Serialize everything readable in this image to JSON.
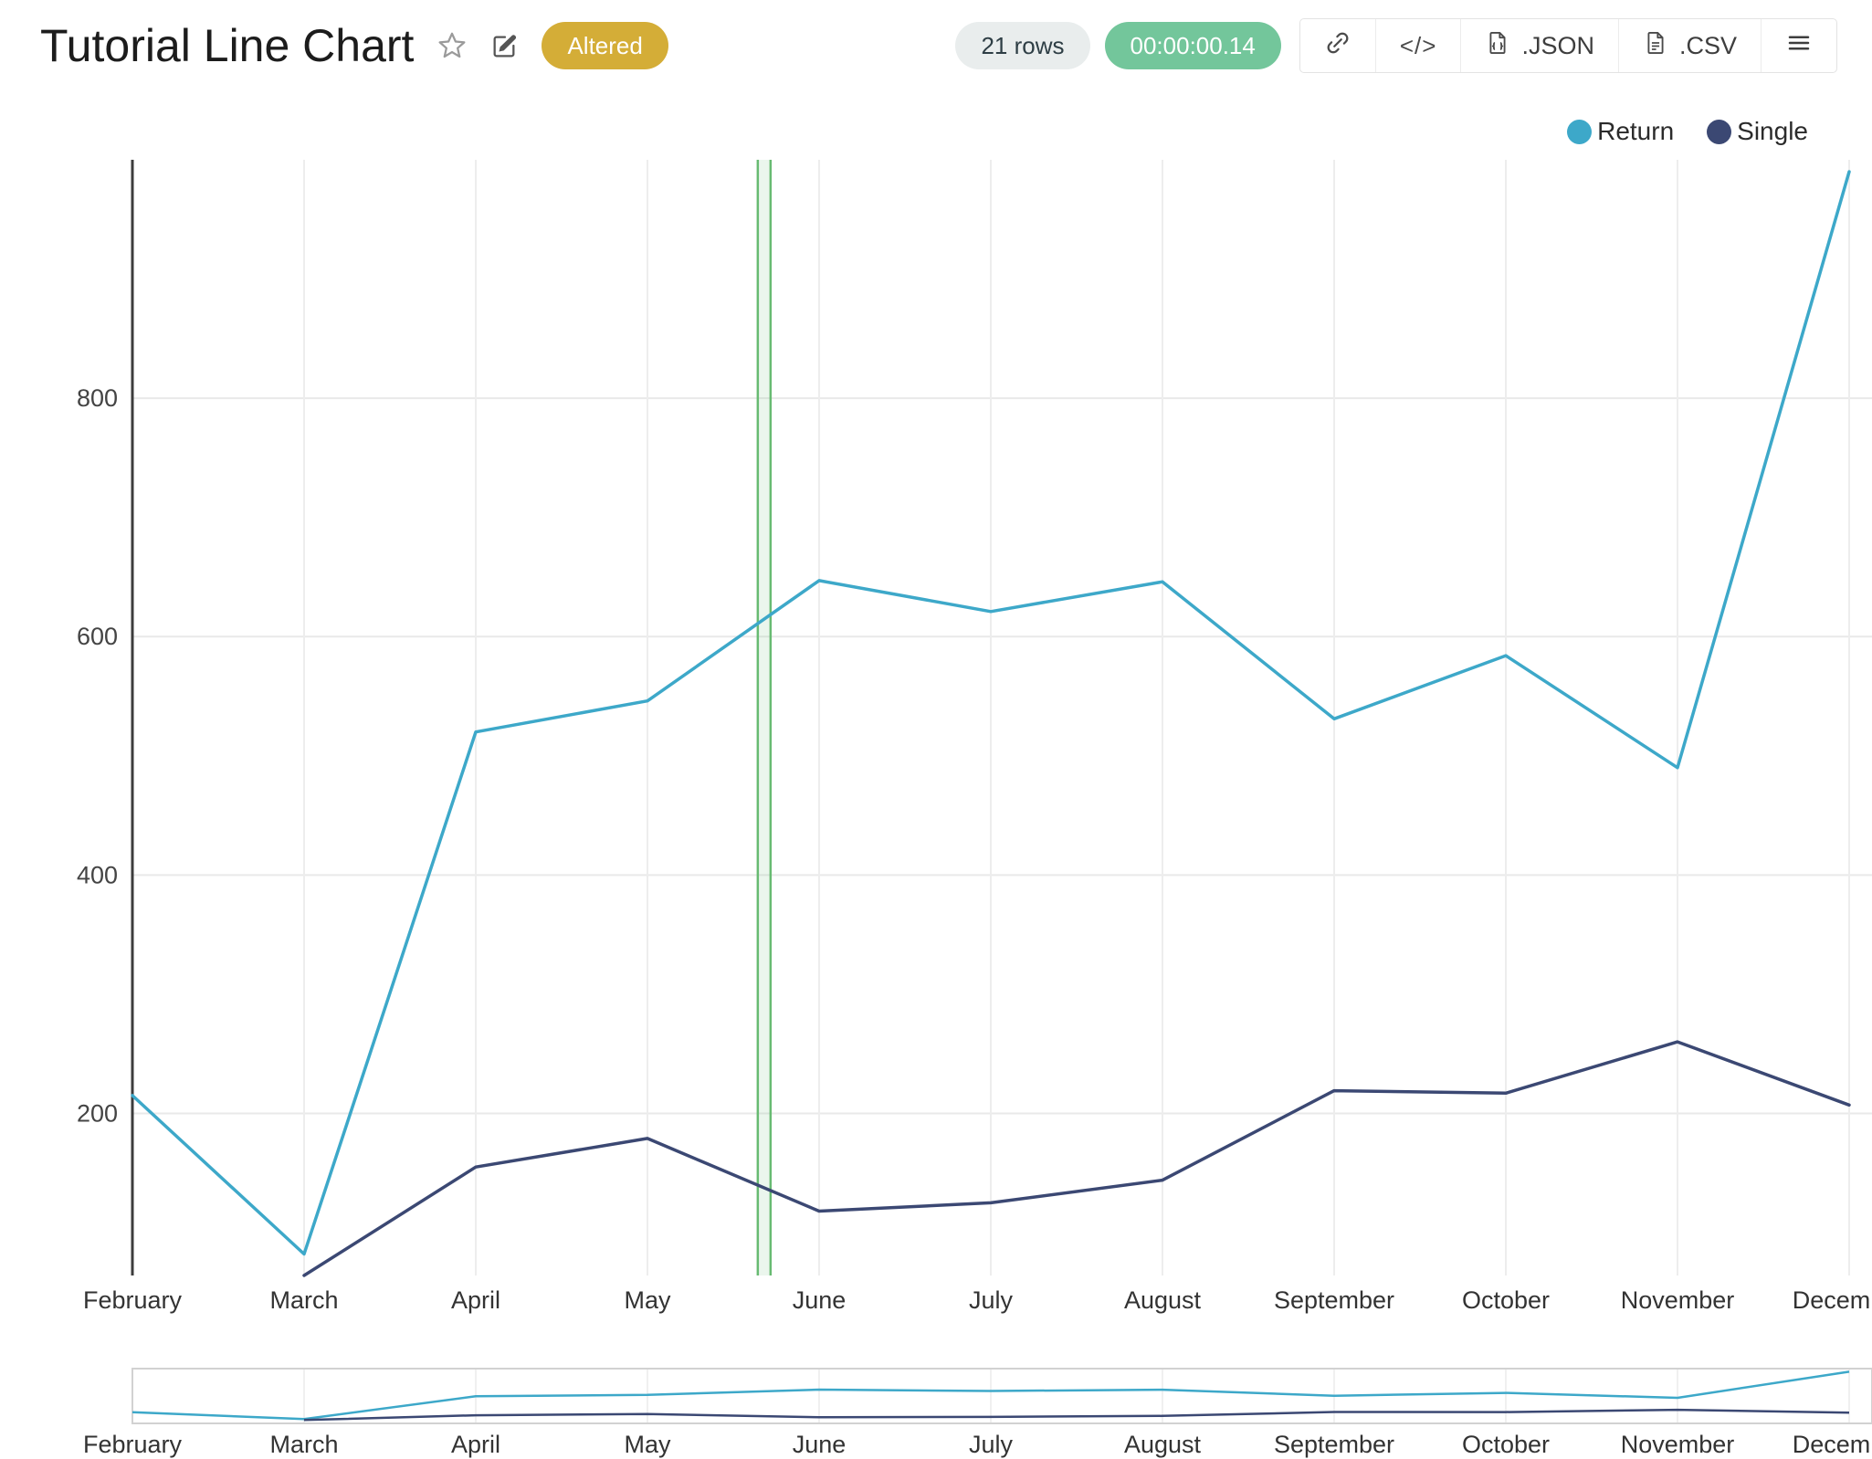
{
  "header": {
    "title": "Tutorial Line Chart",
    "altered_badge": "Altered",
    "rows_badge": "21 rows",
    "timer_badge": "00:00:00.14",
    "buttons": {
      "embed_label": "</>",
      "json_label": ".JSON",
      "csv_label": ".CSV"
    }
  },
  "colors": {
    "altered_gold": "#d4ad37",
    "timer_green": "#73c69b",
    "rows_gray": "#e9eded",
    "grid": "#e9e9e9",
    "selection_green": "#68bb72"
  },
  "chart_data": {
    "type": "line",
    "title": "Tutorial Line Chart",
    "categories": [
      "February",
      "March",
      "April",
      "May",
      "June",
      "July",
      "August",
      "September",
      "October",
      "November",
      "December"
    ],
    "series": [
      {
        "name": "Return",
        "color": "#3da8c9",
        "values": [
          215,
          82,
          520,
          546,
          647,
          621,
          646,
          531,
          584,
          490,
          990
        ]
      },
      {
        "name": "Single",
        "color": "#3b4873",
        "values": [
          null,
          64,
          155,
          179,
          118,
          125,
          144,
          219,
          217,
          260,
          207
        ]
      }
    ],
    "yticks": [
      200,
      400,
      600,
      800
    ],
    "ylim": [
      64,
      1000
    ],
    "grid": true,
    "legend_position": "top-right",
    "xlabel": "",
    "ylabel": "",
    "annotations": [
      {
        "type": "vertical-selection-band",
        "between": [
          "May",
          "June"
        ],
        "x_category_position": 3.68
      }
    ],
    "range_slider": {
      "visible": true,
      "categories_repeated": true
    }
  }
}
